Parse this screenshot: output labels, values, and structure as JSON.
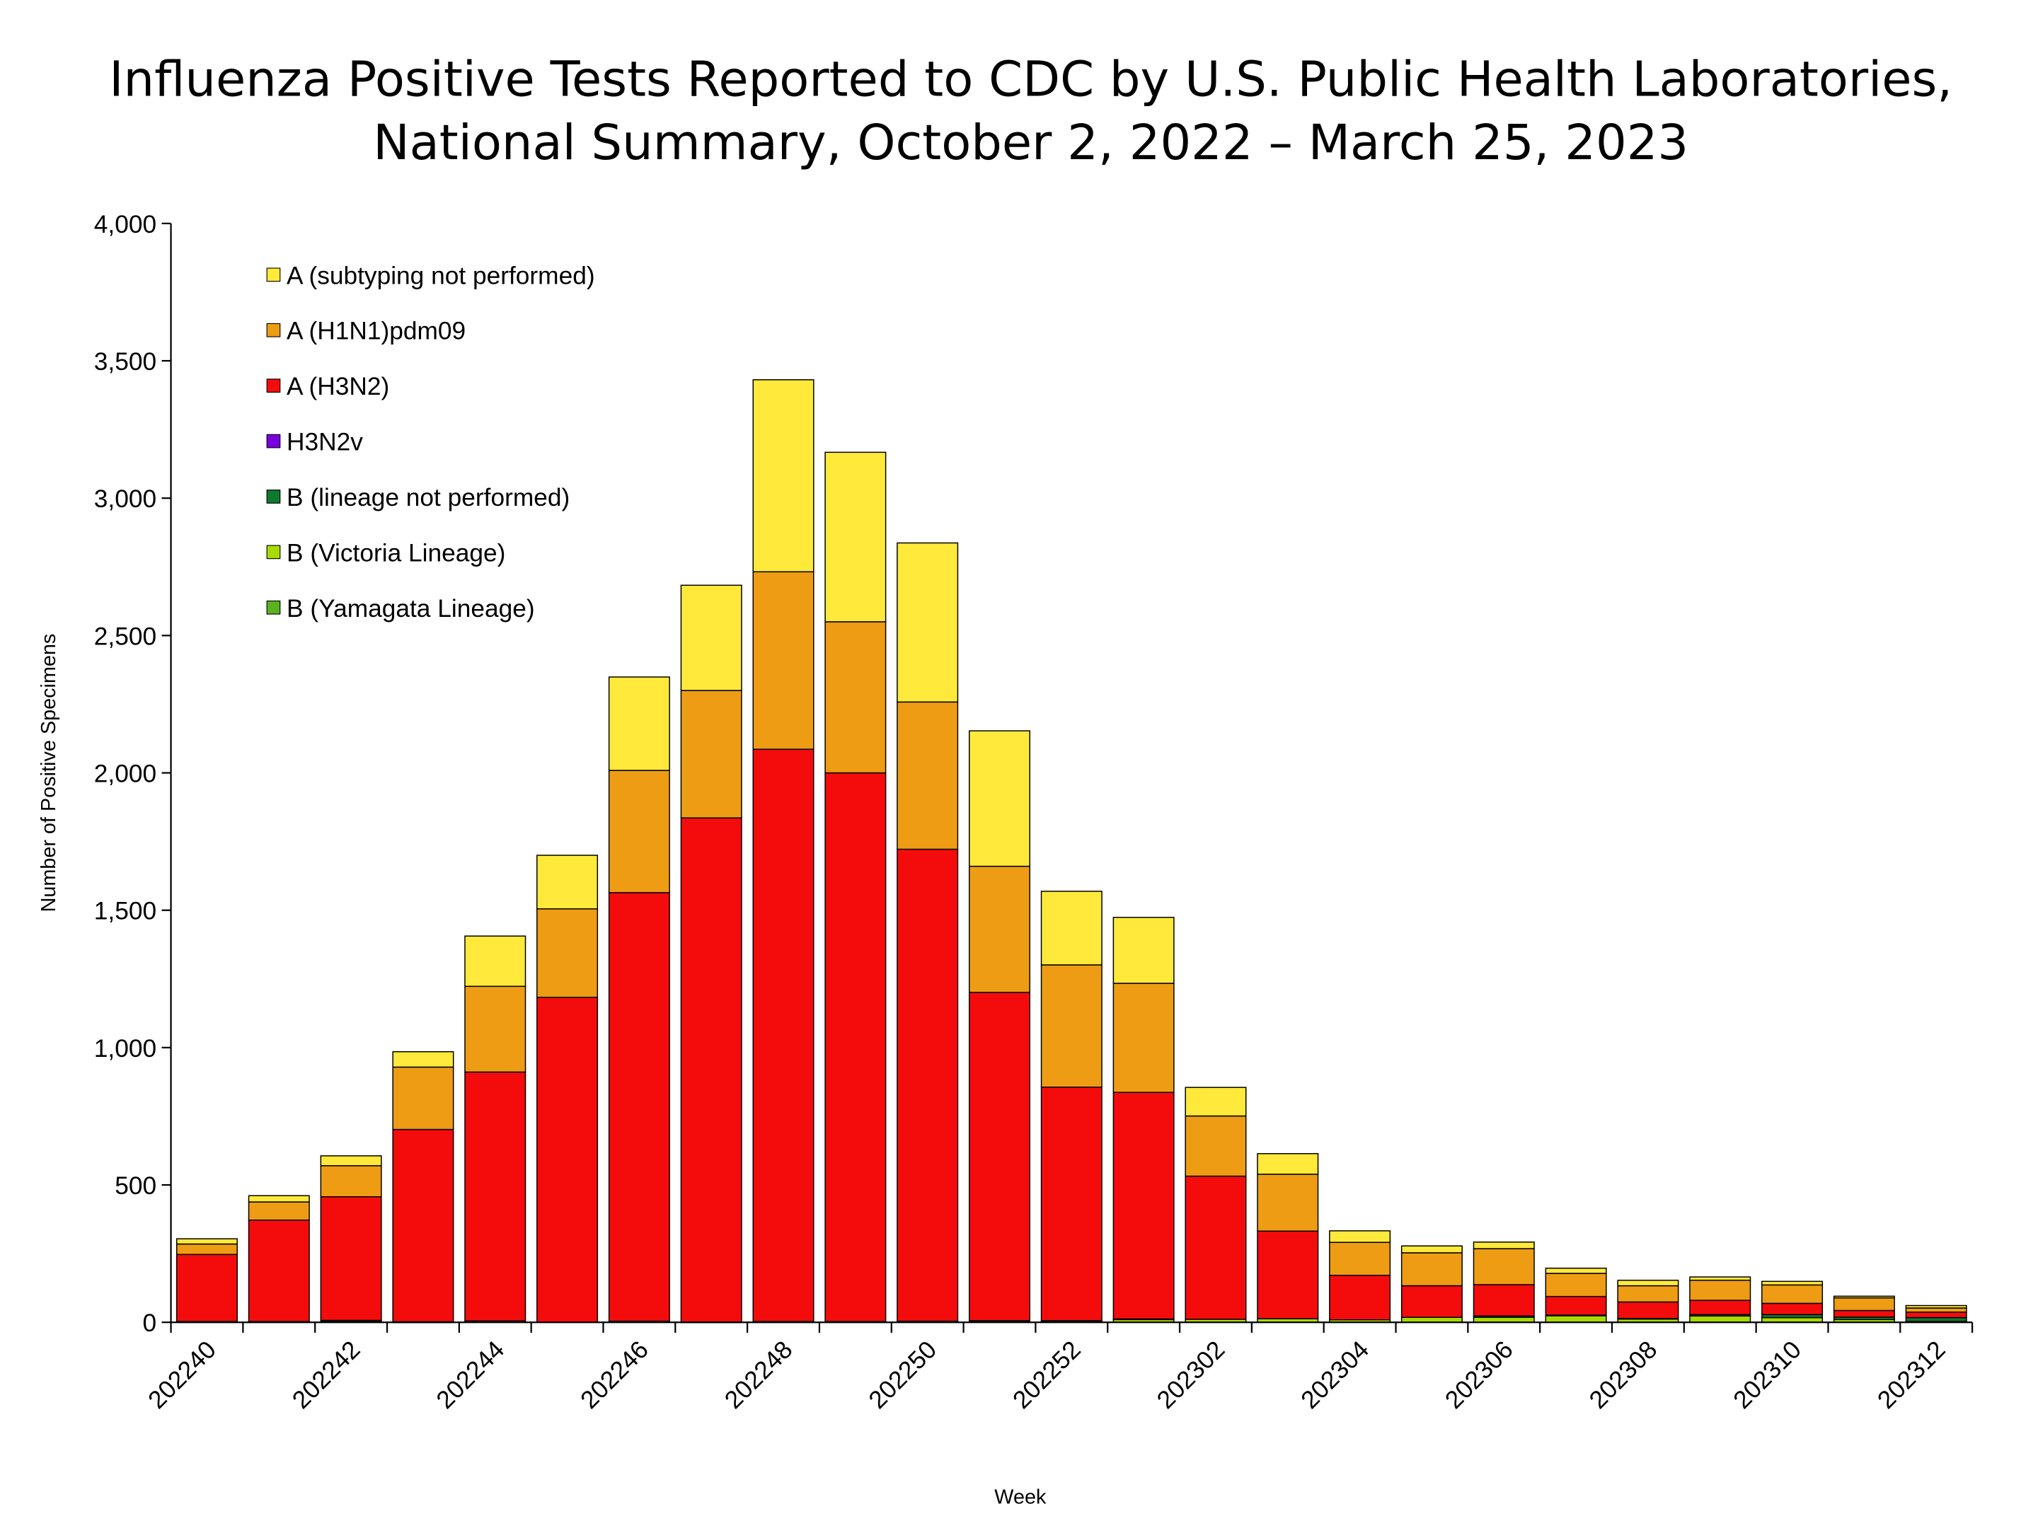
{
  "chart_data": {
    "type": "bar",
    "stacked": true,
    "title": [
      "Influenza Positive Tests Reported to CDC by U.S. Public Health Laboratories,",
      "National Summary, October 2, 2022 – March 25, 2023"
    ],
    "xlabel": "Week",
    "ylabel": "Number of Positive Specimens",
    "ylim": [
      0,
      4000
    ],
    "yticks": [
      0,
      500,
      1000,
      1500,
      2000,
      2500,
      3000,
      3500,
      4000
    ],
    "ytick_labels": [
      "0",
      "500",
      "1,000",
      "1,500",
      "2,000",
      "2,500",
      "3,000",
      "3,500",
      "4,000"
    ],
    "categories": [
      "202240",
      "202241",
      "202242",
      "202243",
      "202244",
      "202245",
      "202246",
      "202247",
      "202248",
      "202249",
      "202250",
      "202251",
      "202252",
      "202301",
      "202302",
      "202303",
      "202304",
      "202305",
      "202306",
      "202307",
      "202308",
      "202309",
      "202310",
      "202311",
      "202312"
    ],
    "xtick_labels": [
      "202240",
      "202242",
      "202244",
      "202246",
      "202248",
      "202250",
      "202252",
      "202302",
      "202304",
      "202306",
      "202308",
      "202310",
      "202312"
    ],
    "legend_position": "top-left",
    "grid": false,
    "series": [
      {
        "name": "B (Yamagata Lineage)",
        "color": "#5AB21E",
        "values": [
          0,
          0,
          0,
          0,
          0,
          0,
          0,
          0,
          0,
          0,
          0,
          0,
          0,
          0,
          0,
          0,
          0,
          0,
          0,
          0,
          0,
          0,
          0,
          0,
          0
        ]
      },
      {
        "name": "B (Victoria Lineage)",
        "color": "#A8DC00",
        "values": [
          2,
          2,
          4,
          1,
          3,
          0,
          3,
          1,
          2,
          2,
          3,
          4,
          5,
          11,
          11,
          13,
          9,
          18,
          18,
          24,
          12,
          23,
          17,
          10,
          3
        ]
      },
      {
        "name": "B (lineage not performed)",
        "color": "#0E7A2E",
        "values": [
          1,
          1,
          3,
          1,
          2,
          0,
          1,
          0,
          1,
          1,
          1,
          2,
          1,
          1,
          0,
          0,
          0,
          0,
          5,
          2,
          2,
          5,
          11,
          9,
          14
        ]
      },
      {
        "name": "H3N2v",
        "color": "#7B00E0",
        "values": [
          0,
          0,
          0,
          0,
          0,
          0,
          0,
          0,
          0,
          0,
          0,
          0,
          0,
          0,
          0,
          0,
          0,
          0,
          0,
          0,
          0,
          0,
          0,
          0,
          0
        ]
      },
      {
        "name": "A (H3N2)",
        "color": "#F40C0C",
        "values": [
          244,
          369,
          450,
          700,
          906,
          1183,
          1560,
          1835,
          2083,
          1997,
          1718,
          1195,
          850,
          825,
          521,
          319,
          162,
          115,
          114,
          68,
          60,
          52,
          41,
          24,
          20
        ]
      },
      {
        "name": "A (H1N1)pdm09",
        "color": "#ED9C14",
        "values": [
          38,
          66,
          113,
          227,
          312,
          322,
          445,
          464,
          646,
          550,
          536,
          459,
          445,
          397,
          219,
          207,
          120,
          120,
          131,
          84,
          59,
          73,
          67,
          46,
          15
        ]
      },
      {
        "name": "A (subtyping not performed)",
        "color": "#FFE93B",
        "values": [
          19,
          23,
          36,
          56,
          183,
          195,
          340,
          383,
          699,
          617,
          579,
          493,
          268,
          240,
          104,
          75,
          42,
          25,
          24,
          19,
          20,
          12,
          13,
          6,
          9
        ]
      }
    ]
  }
}
